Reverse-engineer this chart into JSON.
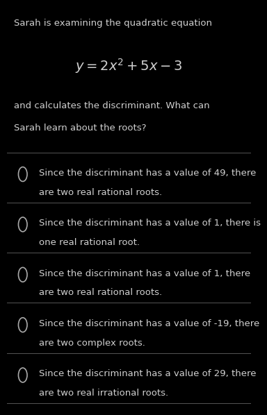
{
  "background_color": "#000000",
  "text_color": "#d0d0d0",
  "title_lines": [
    "Sarah is examining the quadratic equation"
  ],
  "subtitle_lines": [
    "and calculates the discriminant. What can",
    "Sarah learn about the roots?"
  ],
  "options": [
    [
      "Since the discriminant has a value of 49, there",
      "are two real rational roots."
    ],
    [
      "Since the discriminant has a value of 1, there is",
      "one real rational root."
    ],
    [
      "Since the discriminant has a value of 1, there",
      "are two real rational roots."
    ],
    [
      "Since the discriminant has a value of -19, there",
      "are two complex roots."
    ],
    [
      "Since the discriminant has a value of 29, there",
      "are two real irrational roots."
    ]
  ],
  "divider_color": "#555555",
  "circle_color": "#aaaaaa",
  "text_fontsize": 9.5,
  "equation_fontsize": 14,
  "title_fontsize": 9.5
}
